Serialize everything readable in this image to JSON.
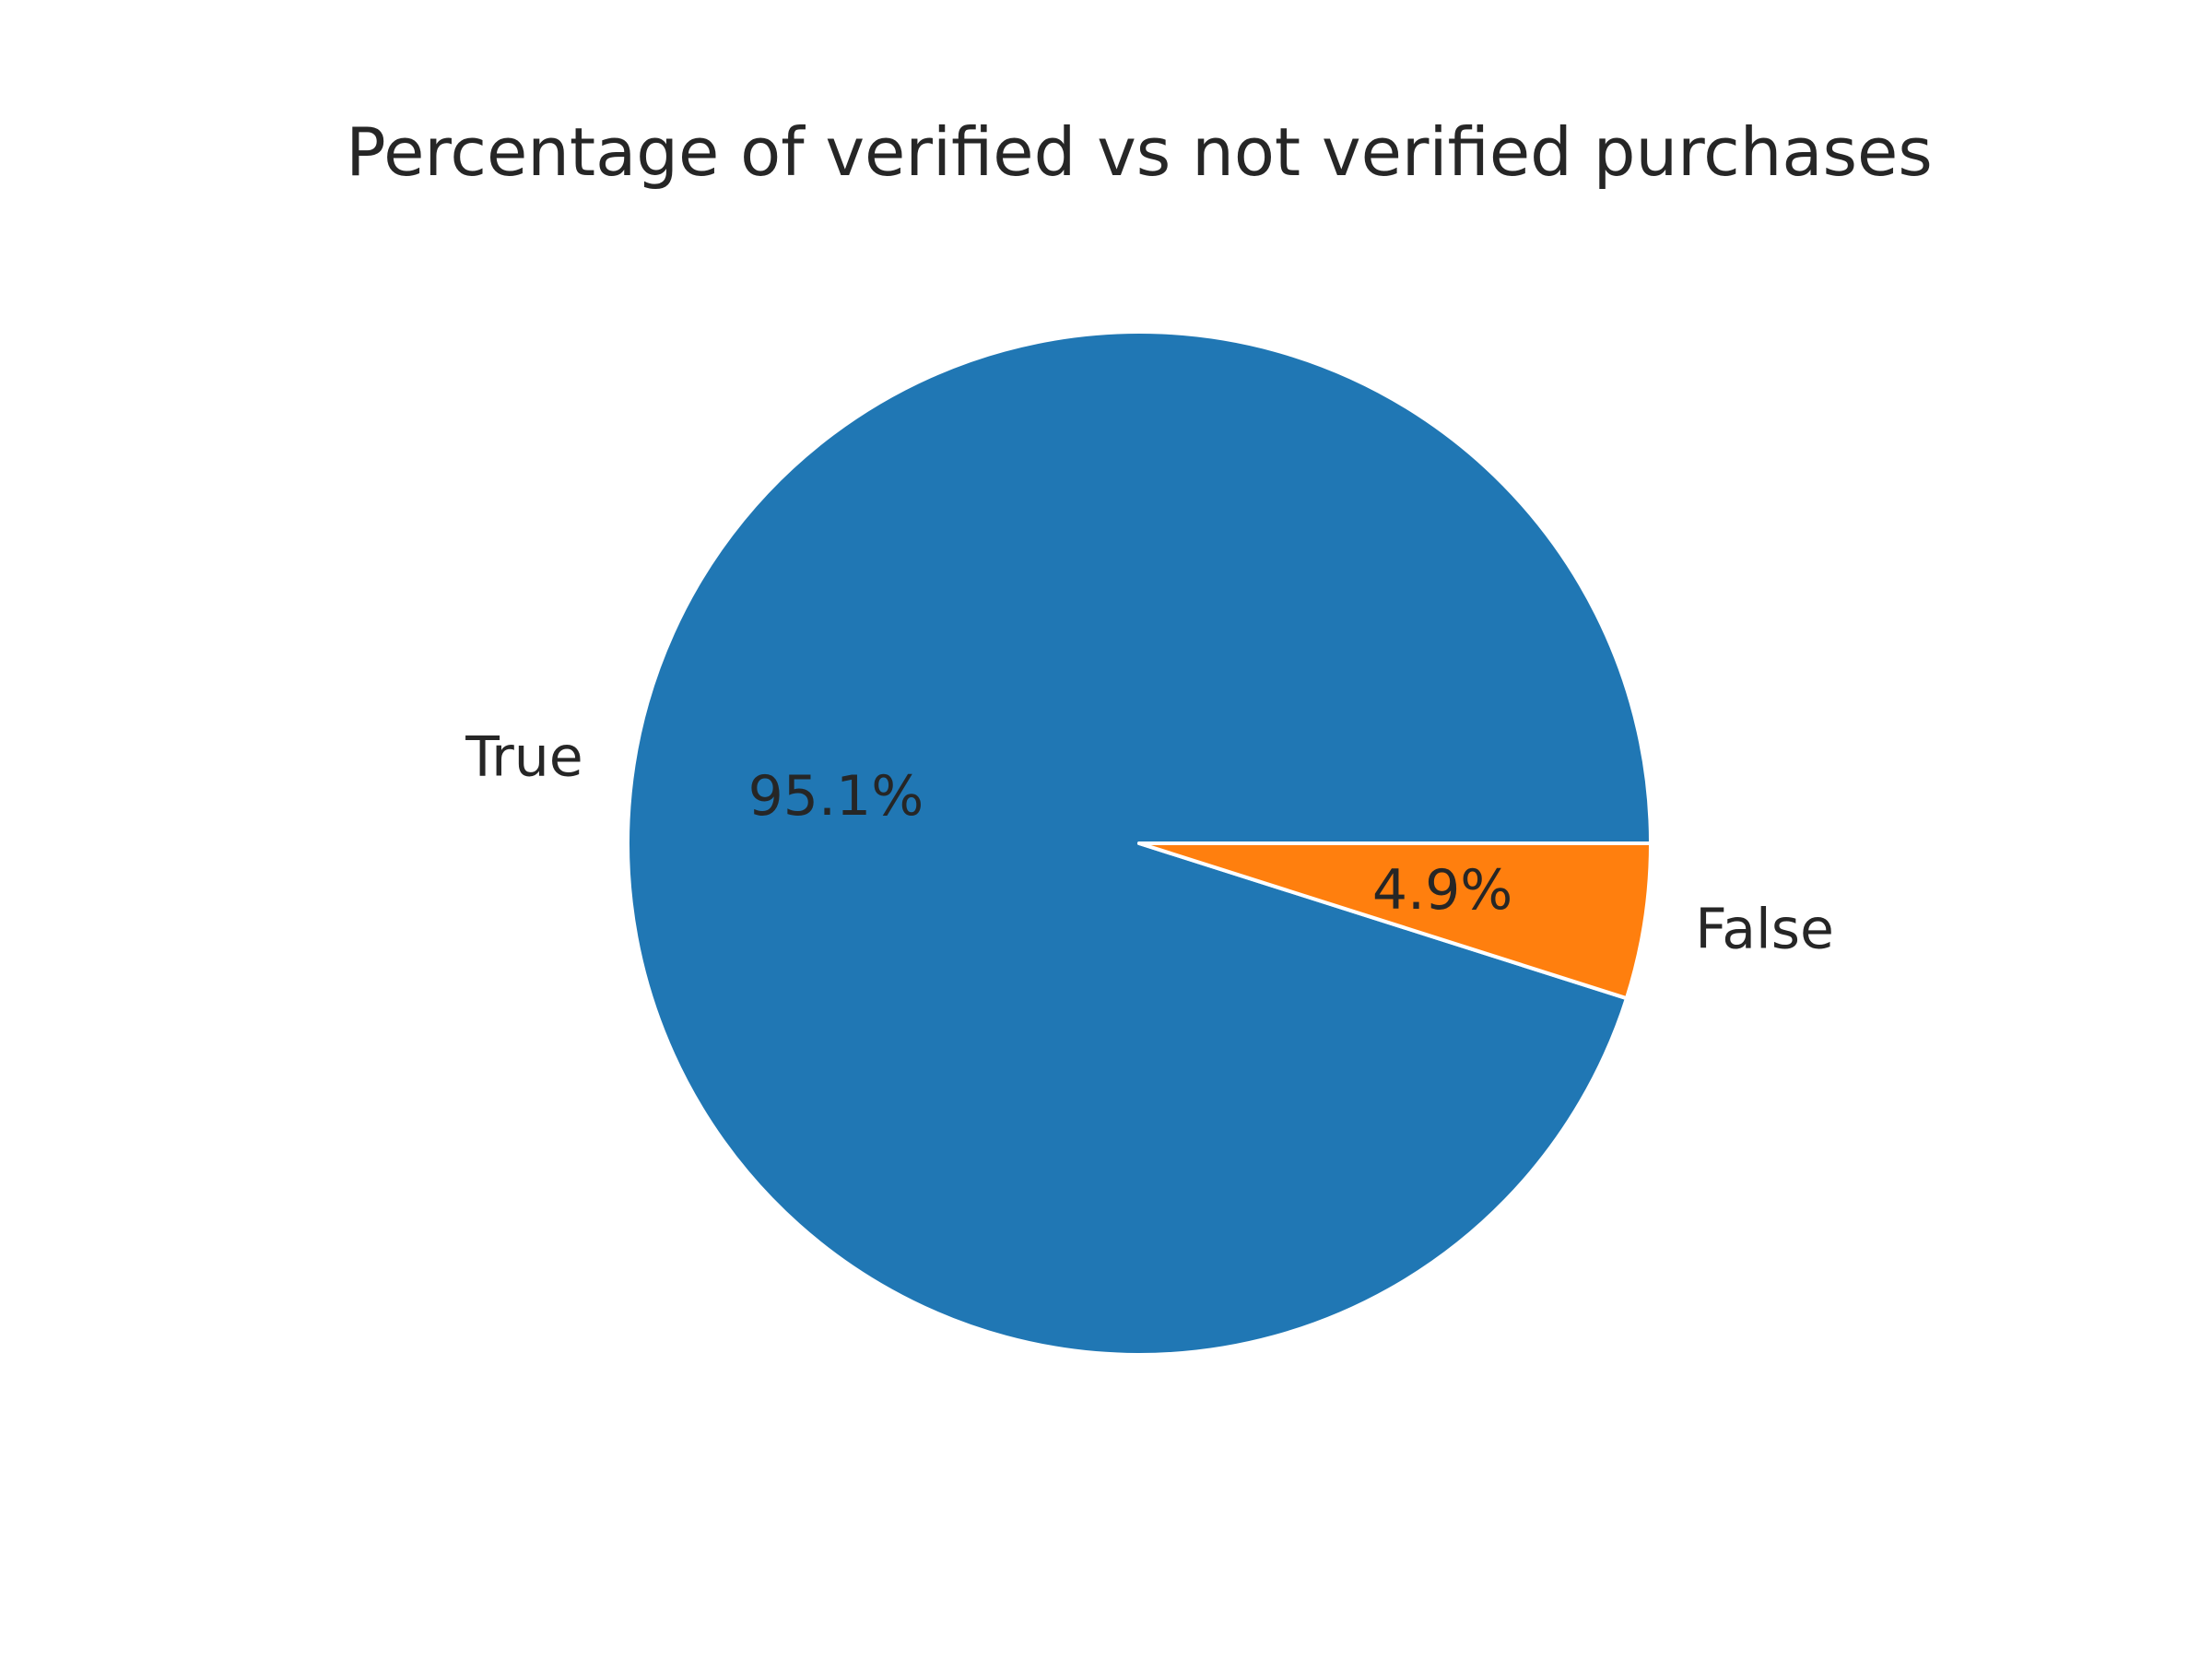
{
  "chart_data": {
    "type": "pie",
    "title": "Percentage of verified vs not verified purchases",
    "labels": [
      "True",
      "False"
    ],
    "values": [
      95.1,
      4.9
    ],
    "value_labels": [
      "95.1%",
      "4.9%"
    ],
    "colors": [
      "#2077b4",
      "#ff7f0e"
    ],
    "start_angle": 0,
    "direction": "counterclockwise",
    "legend": "none"
  }
}
